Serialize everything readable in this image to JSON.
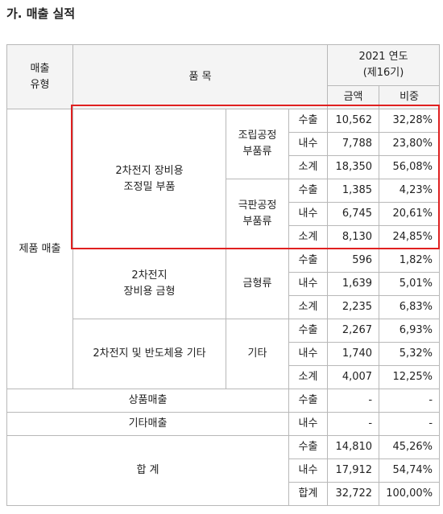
{
  "title": "가. 매출 실적",
  "header": {
    "type": [
      "매출",
      "유형"
    ],
    "item": "품 목",
    "period": [
      "2021 연도",
      "(제16기)"
    ],
    "amount": "금액",
    "share": "비중"
  },
  "sections": [
    {
      "type": "제품 매출",
      "products": [
        {
          "name": [
            "2차전지 장비용",
            "조정밀 부품"
          ],
          "items": [
            {
              "name": [
                "조립공정",
                "부품류"
              ],
              "rows": [
                [
                  "수출",
                  "10,562",
                  "32,28%"
                ],
                [
                  "내수",
                  "7,788",
                  "23,80%"
                ],
                [
                  "소계",
                  "18,350",
                  "56,08%"
                ]
              ]
            },
            {
              "name": [
                "극판공정",
                "부품류"
              ],
              "rows": [
                [
                  "수출",
                  "1,385",
                  "4,23%"
                ],
                [
                  "내수",
                  "6,745",
                  "20,61%"
                ],
                [
                  "소계",
                  "8,130",
                  "24,85%"
                ]
              ]
            }
          ]
        },
        {
          "name": [
            "2차전지",
            "장비용 금형"
          ],
          "items": [
            {
              "name": [
                "금형류"
              ],
              "rows": [
                [
                  "수출",
                  "596",
                  "1,82%"
                ],
                [
                  "내수",
                  "1,639",
                  "5,01%"
                ],
                [
                  "소계",
                  "2,235",
                  "6,83%"
                ]
              ]
            }
          ]
        },
        {
          "name": [
            "2차전지 및 반도체용 기타"
          ],
          "items": [
            {
              "name": [
                "기타"
              ],
              "rows": [
                [
                  "수출",
                  "2,267",
                  "6,93%"
                ],
                [
                  "내수",
                  "1,740",
                  "5,32%"
                ],
                [
                  "소계",
                  "4,007",
                  "12,25%"
                ]
              ]
            }
          ]
        }
      ]
    }
  ],
  "others": [
    {
      "name": "상품매출",
      "row": [
        "수출",
        "-",
        "-"
      ]
    },
    {
      "name": "기타매출",
      "row": [
        "내수",
        "-",
        "-"
      ]
    }
  ],
  "total": {
    "name": "합 계",
    "rows": [
      [
        "수출",
        "14,810",
        "45,26%"
      ],
      [
        "내수",
        "17,912",
        "54,74%"
      ],
      [
        "합계",
        "32,722",
        "100,00%"
      ]
    ]
  }
}
